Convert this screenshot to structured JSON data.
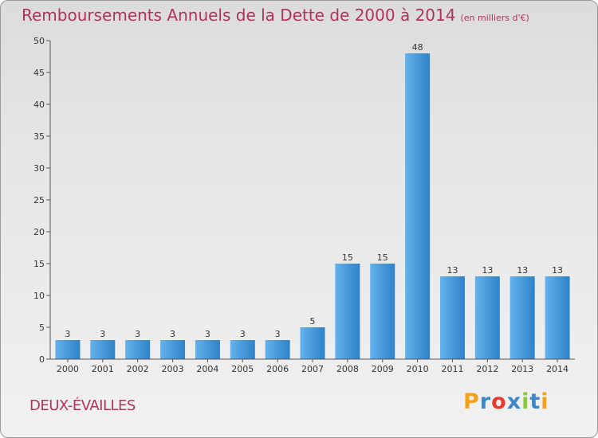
{
  "title": "Remboursements Annuels de la Dette de 2000 à 2014",
  "unit": "(en milliers d'€)",
  "commune": "DEUX-ÉVAILLES",
  "logo": {
    "letters": [
      "P",
      "r",
      "o",
      "x",
      "i",
      "t",
      "i"
    ],
    "colors": [
      "#f4a21b",
      "#3a88c8",
      "#e83a2f",
      "#3a88c8",
      "#8cc63f",
      "#3a88c8",
      "#f4a21b"
    ]
  },
  "colors": {
    "bar": "#3d8fd2",
    "bar_light": "#64b2ec",
    "title": "#b0325f"
  },
  "chart_data": {
    "type": "bar",
    "categories": [
      "2000",
      "2001",
      "2002",
      "2003",
      "2004",
      "2005",
      "2006",
      "2007",
      "2008",
      "2009",
      "2010",
      "2011",
      "2012",
      "2013",
      "2014"
    ],
    "values": [
      3,
      3,
      3,
      3,
      3,
      3,
      3,
      5,
      15,
      15,
      48,
      13,
      13,
      13,
      13
    ],
    "data_labels": [
      "3",
      "3",
      "3",
      "3",
      "3",
      "3",
      "3",
      "5",
      "15",
      "15",
      "48",
      "13",
      "13",
      "13",
      "13"
    ],
    "yticks": [
      "0",
      "5",
      "10",
      "15",
      "20",
      "25",
      "30",
      "35",
      "40",
      "45",
      "50"
    ],
    "ylim": [
      0,
      50
    ],
    "grid": false
  }
}
